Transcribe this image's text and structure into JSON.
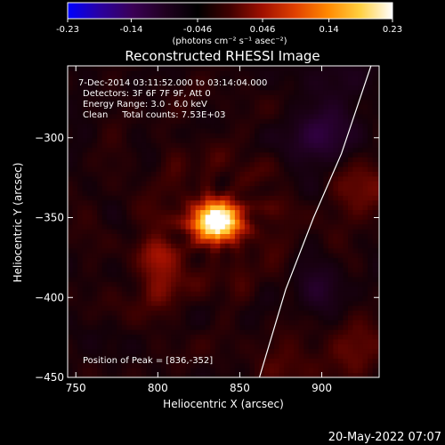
{
  "colorbar": {
    "ticks": [
      "-0.23",
      "-0.14",
      "-0.046",
      "0.046",
      "0.14",
      "0.23"
    ],
    "units": "(photons cm⁻² s⁻¹ asec⁻²)",
    "min": -0.23,
    "max": 0.23,
    "colors": [
      "#0000ff",
      "#2a00a0",
      "#3a0055",
      "#200020",
      "#000000",
      "#400000",
      "#a01000",
      "#e04000",
      "#ff8800",
      "#ffd040",
      "#ffffff"
    ]
  },
  "title": "Reconstructed RHESSI Image",
  "info": {
    "line1": "7-Dec-2014 03:11:52.000 to 03:14:04.000",
    "line2": "Detectors: 3F 6F 7F 9F, Att 0",
    "line3": "Energy Range: 3.0 - 6.0 keV",
    "line4": "Clean     Total counts: 7.53E+03"
  },
  "peak_label": "Position of Peak = [836,-352]",
  "footer_date": "20-May-2022 07:07",
  "chart_data": {
    "type": "heatmap",
    "title": "Reconstructed RHESSI Image",
    "xlabel": "Heliocentric X (arcsec)",
    "ylabel": "Heliocentric Y (arcsec)",
    "xlim": [
      745,
      935
    ],
    "ylim": [
      -450,
      -255
    ],
    "xticks": [
      750,
      800,
      850,
      900
    ],
    "yticks": [
      -450,
      -400,
      -350,
      -300
    ],
    "peak": {
      "x": 836,
      "y": -352,
      "value": 0.23
    },
    "secondary_source": {
      "x": 800,
      "y": -385
    },
    "limb": [
      [
        930,
        -255
      ],
      [
        912,
        -310
      ],
      [
        895,
        -350
      ],
      [
        878,
        -395
      ],
      [
        862,
        -450
      ]
    ]
  }
}
